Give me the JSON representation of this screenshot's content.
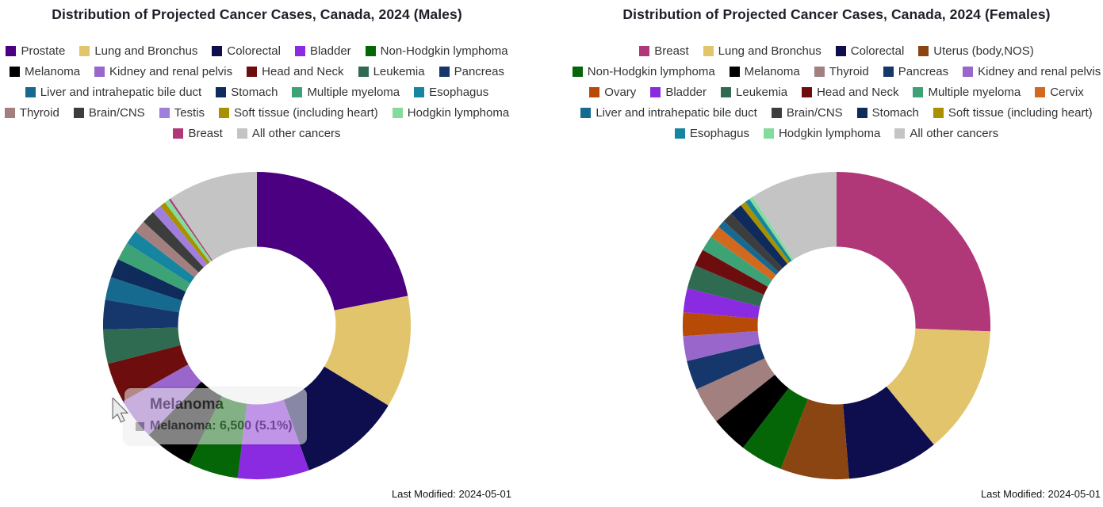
{
  "chart_data": [
    {
      "type": "pie",
      "donut": true,
      "title": "Distribution of Projected Cancer Cases, Canada, 2024 (Males)",
      "legend_position": "top",
      "last_modified": "Last Modified: 2024-05-01",
      "tooltip": {
        "header": "Melanoma",
        "text": "Melanoma: 6,500 (5.1%)",
        "series": "Melanoma",
        "value": 6500,
        "percent": 5.1
      },
      "slices": [
        {
          "label": "Prostate",
          "color": "#4B0082",
          "percent": 21.9
        },
        {
          "label": "Lung and Bronchus",
          "color": "#E2C46D",
          "percent": 11.8
        },
        {
          "label": "Colorectal",
          "color": "#0E0E4F",
          "percent": 10.8
        },
        {
          "label": "Bladder",
          "color": "#8A2BE2",
          "percent": 7.5
        },
        {
          "label": "Non-Hodgkin lymphoma",
          "color": "#056608",
          "percent": 5.3
        },
        {
          "label": "Melanoma",
          "color": "#000000",
          "percent": 5.1
        },
        {
          "label": "Kidney and renal pelvis",
          "color": "#9966CC",
          "percent": 4.4
        },
        {
          "label": "Head and Neck",
          "color": "#6E0D0D",
          "percent": 4.2
        },
        {
          "label": "Leukemia",
          "color": "#2E6B50",
          "percent": 3.6
        },
        {
          "label": "Pancreas",
          "color": "#15376B",
          "percent": 3.1
        },
        {
          "label": "Liver and intrahepatic bile duct",
          "color": "#166A8F",
          "percent": 2.4
        },
        {
          "label": "Stomach",
          "color": "#0F2B5B",
          "percent": 2.0
        },
        {
          "label": "Multiple myeloma",
          "color": "#3EA277",
          "percent": 1.9
        },
        {
          "label": "Esophagus",
          "color": "#1585A0",
          "percent": 1.5
        },
        {
          "label": "Thyroid",
          "color": "#A28080",
          "percent": 1.3
        },
        {
          "label": "Brain/CNS",
          "color": "#3D3D3D",
          "percent": 1.4
        },
        {
          "label": "Testis",
          "color": "#A07EDC",
          "percent": 1.0
        },
        {
          "label": "Soft tissue (including heart)",
          "color": "#A89000",
          "percent": 0.6
        },
        {
          "label": "Hodgkin lymphoma",
          "color": "#83DC9C",
          "percent": 0.5
        },
        {
          "label": "Breast",
          "color": "#B13878",
          "percent": 0.2
        },
        {
          "label": "All other cancers",
          "color": "#C4C4C4",
          "percent": 9.5
        }
      ],
      "legend_rows": [
        [
          0,
          1,
          2,
          3,
          4
        ],
        [
          5,
          6,
          7,
          8,
          9
        ],
        [
          10,
          11,
          12,
          13
        ],
        [
          14,
          15,
          16,
          17,
          18
        ],
        [
          19,
          20
        ]
      ]
    },
    {
      "type": "pie",
      "donut": true,
      "title": "Distribution of Projected Cancer Cases, Canada, 2024 (Females)",
      "legend_position": "top",
      "last_modified": "Last Modified: 2024-05-01",
      "slices": [
        {
          "label": "Breast",
          "color": "#B13878",
          "percent": 25.6
        },
        {
          "label": "Lung and Bronchus",
          "color": "#E2C46D",
          "percent": 13.5
        },
        {
          "label": "Colorectal",
          "color": "#0E0E4F",
          "percent": 9.6
        },
        {
          "label": "Uterus (body,NOS)",
          "color": "#8B4513",
          "percent": 7.2
        },
        {
          "label": "Non-Hodgkin lymphoma",
          "color": "#056608",
          "percent": 4.5
        },
        {
          "label": "Melanoma",
          "color": "#000000",
          "percent": 3.9
        },
        {
          "label": "Thyroid",
          "color": "#A28080",
          "percent": 3.9
        },
        {
          "label": "Pancreas",
          "color": "#15376B",
          "percent": 3.1
        },
        {
          "label": "Kidney and renal pelvis",
          "color": "#9966CC",
          "percent": 2.6
        },
        {
          "label": "Ovary",
          "color": "#B84A08",
          "percent": 2.5
        },
        {
          "label": "Bladder",
          "color": "#8A2BE2",
          "percent": 2.5
        },
        {
          "label": "Leukemia",
          "color": "#2E6B50",
          "percent": 2.5
        },
        {
          "label": "Head and Neck",
          "color": "#6E0D0D",
          "percent": 1.8
        },
        {
          "label": "Multiple myeloma",
          "color": "#3EA277",
          "percent": 1.6
        },
        {
          "label": "Cervix",
          "color": "#D2691E",
          "percent": 1.3
        },
        {
          "label": "Liver and intrahepatic bile duct",
          "color": "#166A8F",
          "percent": 0.8
        },
        {
          "label": "Brain/CNS",
          "color": "#3D3D3D",
          "percent": 1.1
        },
        {
          "label": "Stomach",
          "color": "#0F2B5B",
          "percent": 1.3
        },
        {
          "label": "Soft tissue (including heart)",
          "color": "#A89000",
          "percent": 0.6
        },
        {
          "label": "Esophagus",
          "color": "#1585A0",
          "percent": 0.5
        },
        {
          "label": "Hodgkin lymphoma",
          "color": "#83DC9C",
          "percent": 0.4
        },
        {
          "label": "All other cancers",
          "color": "#C4C4C4",
          "percent": 9.2
        }
      ],
      "legend_rows": [
        [
          0,
          1,
          2,
          3
        ],
        [
          4,
          5,
          6,
          7,
          8
        ],
        [
          9,
          10,
          11,
          12,
          13,
          14
        ],
        [
          15,
          16,
          17,
          18
        ],
        [
          19,
          20,
          21
        ]
      ]
    }
  ]
}
